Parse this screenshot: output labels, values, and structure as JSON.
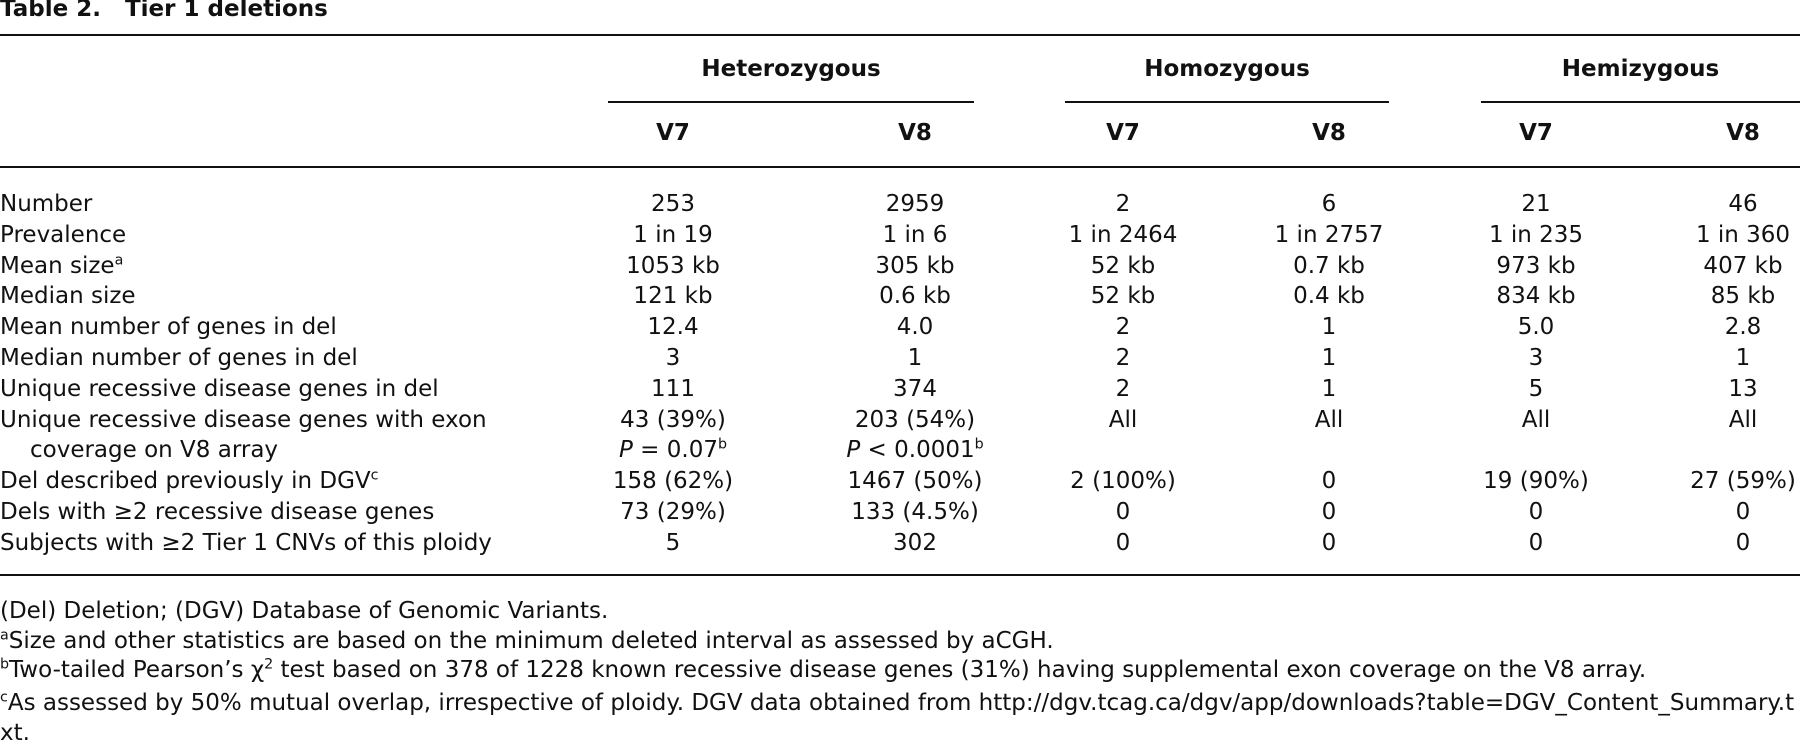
{
  "title": {
    "label": "Table 2.",
    "text": "Tier 1 deletions"
  },
  "table": {
    "groups": [
      "Heterozygous",
      "Homozygous",
      "Hemizygous"
    ],
    "columns": [
      "V7",
      "V8",
      "V7",
      "V8",
      "V7",
      "V8"
    ],
    "rows": [
      {
        "label": "Number",
        "cells": [
          "253",
          "2959",
          "2",
          "6",
          "21",
          "46"
        ]
      },
      {
        "label": "Prevalence",
        "cells": [
          "1 in 19",
          "1 in 6",
          "1 in 2464",
          "1 in 2757",
          "1 in 235",
          "1 in 360"
        ]
      },
      {
        "label": "Mean size",
        "label_sup": "a",
        "cells": [
          "1053 kb",
          "305 kb",
          "52 kb",
          "0.7 kb",
          "973 kb",
          "407 kb"
        ]
      },
      {
        "label": "Median size",
        "cells": [
          "121 kb",
          "0.6 kb",
          "52 kb",
          "0.4 kb",
          "834 kb",
          "85 kb"
        ]
      },
      {
        "label": "Mean number of genes in del",
        "cells": [
          "12.4",
          "4.0",
          "2",
          "1",
          "5.0",
          "2.8"
        ]
      },
      {
        "label": "Median number of genes in del",
        "cells": [
          "3",
          "1",
          "2",
          "1",
          "3",
          "1"
        ]
      },
      {
        "label": "Unique recessive disease genes in del",
        "cells": [
          "111",
          "374",
          "2",
          "1",
          "5",
          "13"
        ]
      },
      {
        "label": "Unique recessive disease genes with exon",
        "label_cont": "coverage on V8 array",
        "cells": [
          "43 (39%)",
          "203 (54%)",
          "All",
          "All",
          "All",
          "All"
        ],
        "notes": [
          {
            "italic": "P",
            "text": " = 0.07",
            "sup": "b"
          },
          {
            "italic": "P",
            "text": " < 0.0001",
            "sup": "b"
          }
        ]
      },
      {
        "label": "Del described previously in DGV",
        "label_sup": "c",
        "cells": [
          "158 (62%)",
          "1467 (50%)",
          "2 (100%)",
          "0",
          "19 (90%)",
          "27 (59%)"
        ]
      },
      {
        "label": "Dels with ≥2 recessive disease genes",
        "cells": [
          "73 (29%)",
          "133 (4.5%)",
          "0",
          "0",
          "0",
          "0"
        ]
      },
      {
        "label": "Subjects with ≥2 Tier 1 CNVs of this ploidy",
        "cells": [
          "5",
          "302",
          "0",
          "0",
          "0",
          "0"
        ]
      }
    ]
  },
  "footnotes": [
    {
      "text": "(Del) Deletion; (DGV) Database of Genomic Variants."
    },
    {
      "mark": "a",
      "text": "Size and other statistics are based on the minimum deleted interval as assessed by aCGH."
    },
    {
      "mark": "b",
      "text": "Two-tailed Pearson’s χ",
      "sup": "2",
      "text_after": " test based on 378 of 1228 known recessive disease genes (31%) having supplemental exon coverage on the V8 array."
    },
    {
      "mark": "c",
      "text": "As assessed by 50% mutual overlap, irrespective of ploidy. DGV data obtained from http://dgv.tcag.ca/dgv/app/downloads?table=DGV_Content_Summary.txt."
    }
  ]
}
